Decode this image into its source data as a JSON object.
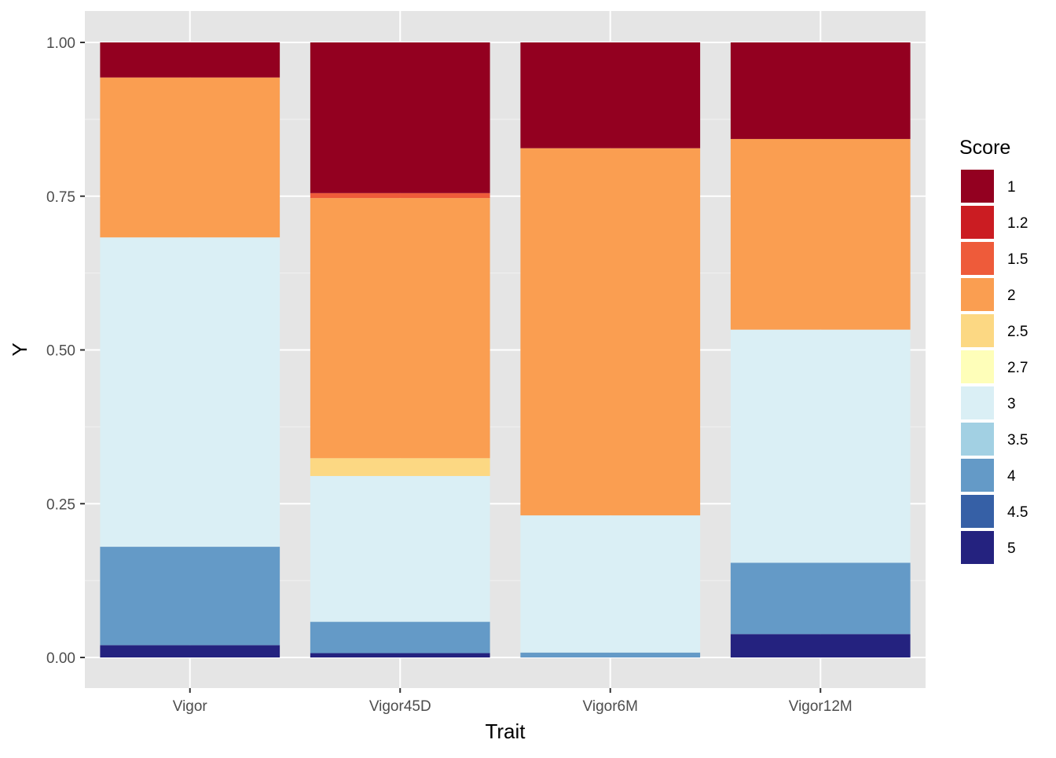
{
  "chart_data": {
    "type": "bar",
    "stacked": true,
    "title": "",
    "xlabel": "Trait",
    "ylabel": "Y",
    "ylim": [
      0,
      1
    ],
    "yticks": [
      0,
      0.25,
      0.5,
      0.75,
      1
    ],
    "ytick_labels": [
      "0.00",
      "0.25",
      "0.50",
      "0.75",
      "1.00"
    ],
    "grid": true,
    "panel_background": "#e5e5e5",
    "legend_position": "right",
    "legend_title": "Score",
    "categories": [
      "Vigor",
      "Vigor45D",
      "Vigor6M",
      "Vigor12M"
    ],
    "series": [
      {
        "name": "5",
        "color": "#24227f",
        "values": [
          0.02,
          0.007,
          0.0,
          0.038
        ]
      },
      {
        "name": "4.5",
        "color": "#3660a6",
        "values": [
          0.0,
          0.0,
          0.0,
          0.0
        ]
      },
      {
        "name": "4",
        "color": "#649ac7",
        "values": [
          0.16,
          0.051,
          0.008,
          0.116
        ]
      },
      {
        "name": "3.5",
        "color": "#a2d0e3",
        "values": [
          0.0,
          0.0,
          0.0,
          0.0
        ]
      },
      {
        "name": "3",
        "color": "#daeff5",
        "values": [
          0.503,
          0.237,
          0.223,
          0.379
        ]
      },
      {
        "name": "2.7",
        "color": "#fefeb9",
        "values": [
          0.0,
          0.0,
          0.0,
          0.0
        ]
      },
      {
        "name": "2.5",
        "color": "#fcd883",
        "values": [
          0.0,
          0.029,
          0.0,
          0.0
        ]
      },
      {
        "name": "2",
        "color": "#fa9e51",
        "values": [
          0.26,
          0.423,
          0.597,
          0.31
        ]
      },
      {
        "name": "1.5",
        "color": "#ee5b3a",
        "values": [
          0.0,
          0.008,
          0.0,
          0.0
        ]
      },
      {
        "name": "1.2",
        "color": "#cb1c22",
        "values": [
          0.0,
          0.0,
          0.0,
          0.0
        ]
      },
      {
        "name": "1",
        "color": "#930020",
        "values": [
          0.057,
          0.245,
          0.172,
          0.157
        ]
      }
    ],
    "legend_order": [
      "1",
      "1.2",
      "1.5",
      "2",
      "2.5",
      "2.7",
      "3",
      "3.5",
      "4",
      "4.5",
      "5"
    ]
  }
}
